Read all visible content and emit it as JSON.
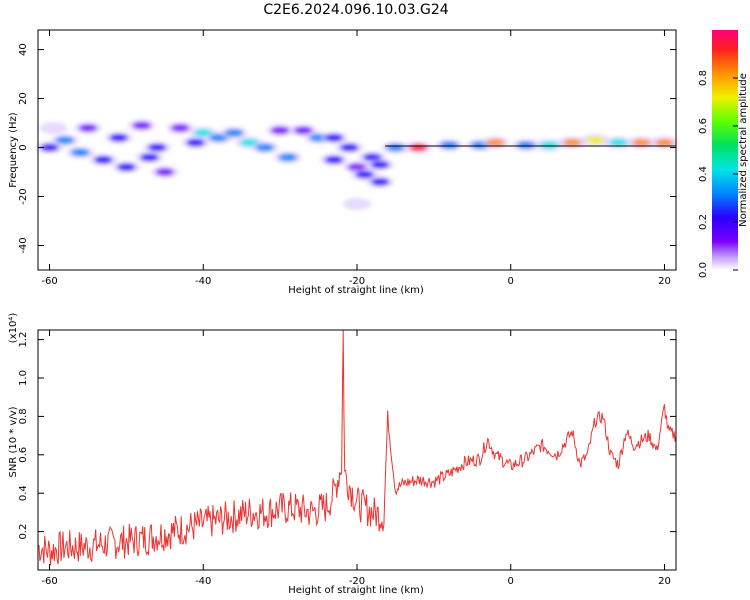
{
  "title": "C2E6.2024.096.10.03.G24",
  "chart_data": [
    {
      "type": "heatmap",
      "xlabel": "Height of straight line (km)",
      "ylabel": "Frequency (Hz)",
      "xlim": [
        -61.5,
        21.5
      ],
      "ylim": [
        -50,
        48
      ],
      "xticks": [
        -60,
        -40,
        -20,
        0,
        20
      ],
      "yticks": [
        -40,
        -20,
        0,
        20,
        40
      ],
      "colorbar": {
        "label": "Normalized spectral amplitude",
        "range": [
          0,
          1
        ],
        "ticks": [
          0.0,
          0.2,
          0.4,
          0.6,
          0.8
        ],
        "tick_labels": [
          "0.0",
          "0.2",
          "0.4",
          "0.6",
          "0.8"
        ]
      },
      "blobs": [
        {
          "x": -60,
          "y": 0,
          "amp": 0.35
        },
        {
          "x": -58,
          "y": 3,
          "amp": 0.4
        },
        {
          "x": -59.5,
          "y": 8,
          "amp": 0.15
        },
        {
          "x": -56,
          "y": -2,
          "amp": 0.45
        },
        {
          "x": -55,
          "y": 8,
          "amp": 0.25
        },
        {
          "x": -53,
          "y": -5,
          "amp": 0.3
        },
        {
          "x": -51,
          "y": 4,
          "amp": 0.3
        },
        {
          "x": -50,
          "y": -8,
          "amp": 0.3
        },
        {
          "x": -48,
          "y": 9,
          "amp": 0.25
        },
        {
          "x": -47,
          "y": -4,
          "amp": 0.35
        },
        {
          "x": -46,
          "y": 0,
          "amp": 0.3
        },
        {
          "x": -45,
          "y": -10,
          "amp": 0.2
        },
        {
          "x": -43,
          "y": 8,
          "amp": 0.25
        },
        {
          "x": -41,
          "y": 2,
          "amp": 0.3
        },
        {
          "x": -40,
          "y": 6,
          "amp": 0.5
        },
        {
          "x": -38,
          "y": 4,
          "amp": 0.45
        },
        {
          "x": -36,
          "y": 6,
          "amp": 0.4
        },
        {
          "x": -34,
          "y": 2,
          "amp": 0.5
        },
        {
          "x": -32,
          "y": 0,
          "amp": 0.4
        },
        {
          "x": -30,
          "y": 7,
          "amp": 0.25
        },
        {
          "x": -29,
          "y": -4,
          "amp": 0.45
        },
        {
          "x": -27,
          "y": 7,
          "amp": 0.2
        },
        {
          "x": -25,
          "y": 4,
          "amp": 0.45
        },
        {
          "x": -23,
          "y": 4,
          "amp": 0.3
        },
        {
          "x": -23,
          "y": -5,
          "amp": 0.35
        },
        {
          "x": -21,
          "y": 0,
          "amp": 0.3
        },
        {
          "x": -20,
          "y": -8,
          "amp": 0.25
        },
        {
          "x": -19,
          "y": -11,
          "amp": 0.3
        },
        {
          "x": -18,
          "y": -4,
          "amp": 0.35
        },
        {
          "x": -17,
          "y": -7,
          "amp": 0.3
        },
        {
          "x": -17,
          "y": -14,
          "amp": 0.3
        },
        {
          "x": -20,
          "y": -23,
          "amp": 0.1
        },
        {
          "x": -15,
          "y": 0,
          "amp": 0.4
        },
        {
          "x": -12,
          "y": 0,
          "amp": 1.0
        },
        {
          "x": -8,
          "y": 1,
          "amp": 0.45
        },
        {
          "x": -4,
          "y": 1,
          "amp": 0.4
        },
        {
          "x": -2,
          "y": 2,
          "amp": 0.9
        },
        {
          "x": 2,
          "y": 1,
          "amp": 0.45
        },
        {
          "x": 5,
          "y": 1,
          "amp": 0.55
        },
        {
          "x": 8,
          "y": 2,
          "amp": 0.85
        },
        {
          "x": 11,
          "y": 3,
          "amp": 0.7
        },
        {
          "x": 14,
          "y": 2,
          "amp": 0.5
        },
        {
          "x": 17,
          "y": 2,
          "amp": 0.95
        },
        {
          "x": 20,
          "y": 2,
          "amp": 0.85
        }
      ]
    },
    {
      "type": "line",
      "xlabel": "Height of straight line (km)",
      "ylabel": "SNR (10 * v/v)",
      "yscale_label": "(x10⁴)",
      "xlim": [
        -61.5,
        21.5
      ],
      "ylim": [
        0.0,
        1.25
      ],
      "xticks": [
        -60,
        -40,
        -20,
        0,
        20
      ],
      "yticks": [
        0.2,
        0.4,
        0.6,
        0.8,
        1.0,
        1.2
      ],
      "series": [
        {
          "color": "#ee3333",
          "x": [
            -61.5,
            -60,
            -58,
            -56,
            -54,
            -52,
            -50,
            -48,
            -46,
            -44,
            -42,
            -40,
            -38,
            -36,
            -34,
            -32,
            -30,
            -28,
            -26,
            -24,
            -23,
            -22,
            -21.8,
            -21.6,
            -20,
            -18,
            -16.5,
            -16,
            -15.5,
            -15,
            -14,
            -12,
            -10,
            -8,
            -6,
            -4,
            -3,
            -2,
            0,
            2,
            4,
            6,
            8,
            9,
            10,
            11,
            12,
            13,
            14,
            15,
            16,
            18,
            19,
            20,
            20.5,
            21.5
          ],
          "y": [
            0.12,
            0.1,
            0.12,
            0.12,
            0.13,
            0.14,
            0.15,
            0.16,
            0.18,
            0.2,
            0.22,
            0.24,
            0.26,
            0.28,
            0.3,
            0.3,
            0.32,
            0.32,
            0.3,
            0.33,
            0.4,
            0.55,
            1.25,
            0.5,
            0.35,
            0.3,
            0.28,
            0.8,
            0.6,
            0.42,
            0.45,
            0.47,
            0.46,
            0.5,
            0.56,
            0.58,
            0.68,
            0.6,
            0.54,
            0.58,
            0.65,
            0.6,
            0.72,
            0.55,
            0.6,
            0.78,
            0.8,
            0.6,
            0.55,
            0.72,
            0.65,
            0.7,
            0.62,
            0.85,
            0.72,
            0.7
          ]
        }
      ]
    }
  ]
}
